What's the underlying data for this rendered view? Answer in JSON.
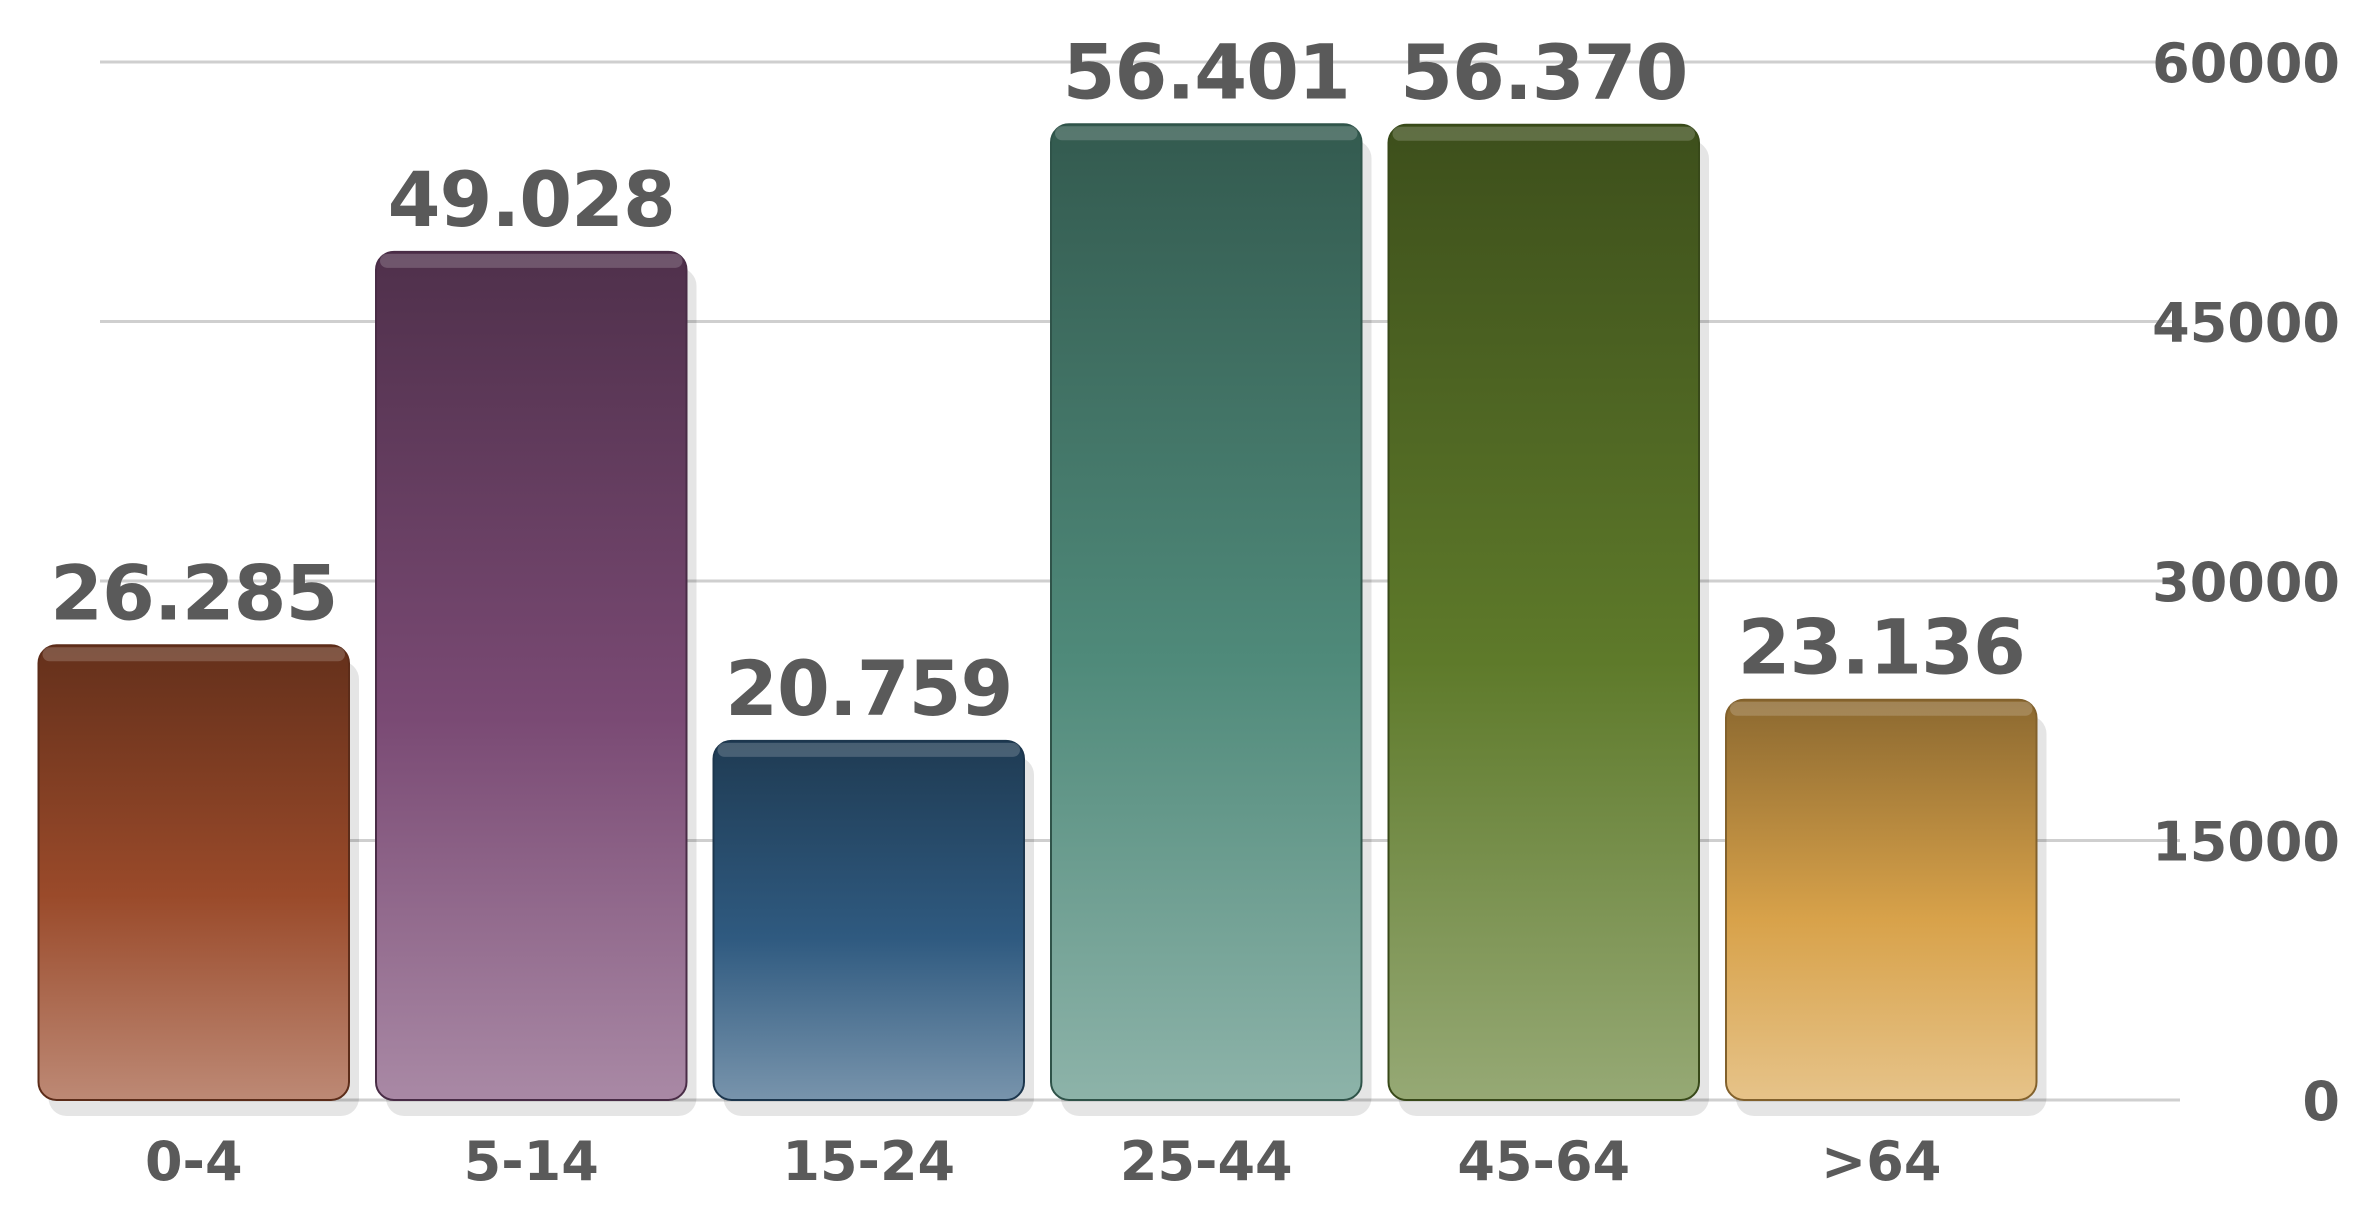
{
  "chart_data": {
    "type": "bar",
    "categories": [
      "0-4",
      "5-14",
      "15-24",
      "25-44",
      "45-64",
      ">64"
    ],
    "values": [
      26285,
      49028,
      20759,
      56401,
      56370,
      23136
    ],
    "value_labels": [
      "26.285",
      "49.028",
      "20.759",
      "56.401",
      "56.370",
      "23.136"
    ],
    "y_ticks": [
      "0",
      "15000",
      "30000",
      "45000",
      "60000"
    ],
    "ylim": [
      0,
      60000
    ],
    "grid": true,
    "y_axis_side": "right",
    "title": "",
    "xlabel": "",
    "ylabel": "",
    "colors": [
      "#9a4a2a",
      "#7a4a74",
      "#2f5a80",
      "#4f8a7a",
      "#5e7a2a",
      "#d8a24a"
    ]
  }
}
